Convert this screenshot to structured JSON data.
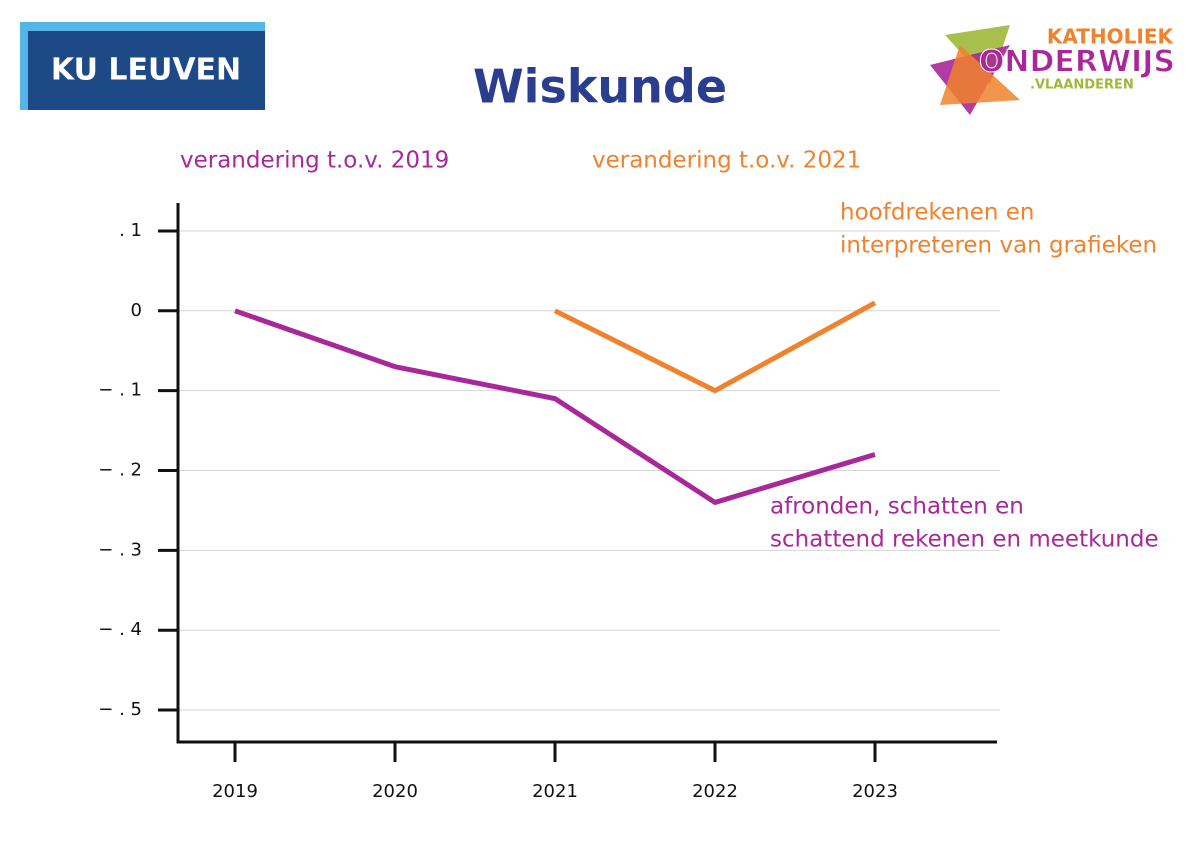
{
  "header": {
    "left_logo": "KU LEUVEN",
    "right_logo": [
      "KATHOLIEK",
      "ONDERWIJS",
      ".VLAANDEREN"
    ]
  },
  "chart_data": {
    "type": "line",
    "title": "Wiskunde",
    "categories": [
      "2019",
      "2020",
      "2021",
      "2022",
      "2023"
    ],
    "series": [
      {
        "name": "verandering t.o.v. 2019",
        "color": "#a8289a",
        "values": [
          0,
          -0.07,
          -0.11,
          -0.24,
          -0.18
        ]
      },
      {
        "name": "verandering t.o.v. 2021",
        "color": "#f0822d",
        "values": [
          null,
          null,
          0,
          -0.1,
          0.01
        ]
      }
    ],
    "annotations": [
      {
        "lines": [
          "hoofdrekenen en",
          "interpreteren van grafieken"
        ],
        "color": "#f0822d"
      },
      {
        "lines": [
          "afronden, schatten en",
          "schattend rekenen en meetkunde"
        ],
        "color": "#a8289a"
      }
    ],
    "ylim": [
      -0.54,
      0.135
    ],
    "yticks": [
      {
        "value": 0.1,
        "label": ". 1"
      },
      0,
      {
        "value": -0.1,
        "label": "− . 1"
      },
      {
        "value": -0.2,
        "label": "− . 2"
      },
      {
        "value": -0.3,
        "label": "− . 3"
      },
      {
        "value": -0.4,
        "label": "− . 4"
      },
      {
        "value": -0.5,
        "label": "− . 5"
      }
    ],
    "grid": true
  }
}
